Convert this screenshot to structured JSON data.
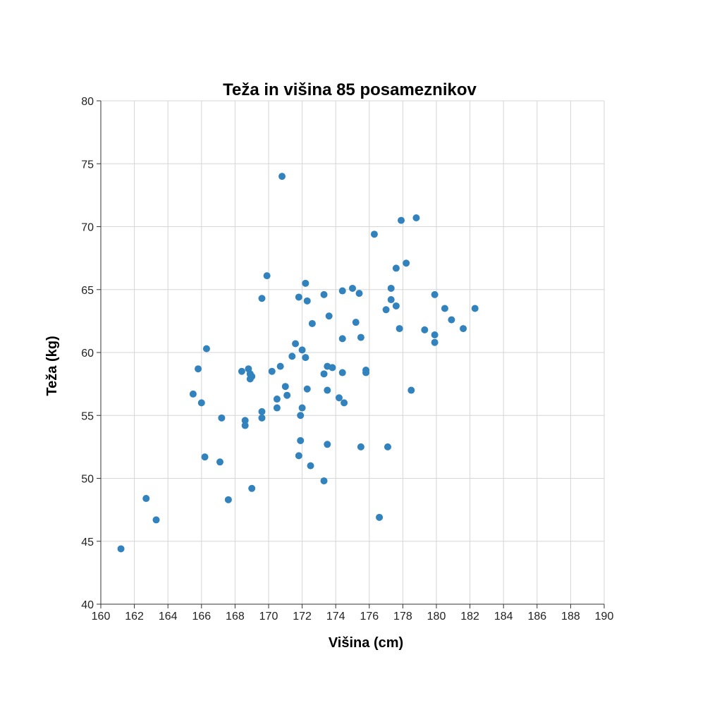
{
  "chart_data": {
    "type": "scatter",
    "title": "Teža in višina 85 posameznikov",
    "xlabel": "Višina (cm)",
    "ylabel": "Teža (kg)",
    "xlim": [
      160,
      190
    ],
    "ylim": [
      40,
      80
    ],
    "x_ticks": [
      160,
      162,
      164,
      166,
      168,
      170,
      172,
      174,
      176,
      178,
      180,
      182,
      184,
      186,
      188,
      190
    ],
    "y_ticks": [
      40,
      45,
      50,
      55,
      60,
      65,
      70,
      75,
      80
    ],
    "grid": true,
    "point_color": "#3182bd",
    "points": [
      [
        161.2,
        44.4
      ],
      [
        162.7,
        48.4
      ],
      [
        163.3,
        46.7
      ],
      [
        165.5,
        56.7
      ],
      [
        165.8,
        58.7
      ],
      [
        166.0,
        56.0
      ],
      [
        166.2,
        51.7
      ],
      [
        166.3,
        60.3
      ],
      [
        167.1,
        51.3
      ],
      [
        167.2,
        54.8
      ],
      [
        167.6,
        48.3
      ],
      [
        168.4,
        58.5
      ],
      [
        168.6,
        54.6
      ],
      [
        168.6,
        54.2
      ],
      [
        168.8,
        58.7
      ],
      [
        168.9,
        58.3
      ],
      [
        168.9,
        57.9
      ],
      [
        169.0,
        58.1
      ],
      [
        169.0,
        49.2
      ],
      [
        169.6,
        64.3
      ],
      [
        169.6,
        55.3
      ],
      [
        169.6,
        54.8
      ],
      [
        169.9,
        66.1
      ],
      [
        170.2,
        58.5
      ],
      [
        170.5,
        56.3
      ],
      [
        170.5,
        55.6
      ],
      [
        170.7,
        58.9
      ],
      [
        170.8,
        74.0
      ],
      [
        171.0,
        57.3
      ],
      [
        171.1,
        56.6
      ],
      [
        171.4,
        59.7
      ],
      [
        171.6,
        60.7
      ],
      [
        171.8,
        64.4
      ],
      [
        171.8,
        51.8
      ],
      [
        171.9,
        55.0
      ],
      [
        171.9,
        53.0
      ],
      [
        172.0,
        60.2
      ],
      [
        172.0,
        55.6
      ],
      [
        172.2,
        65.5
      ],
      [
        172.2,
        59.6
      ],
      [
        172.3,
        64.1
      ],
      [
        172.3,
        57.1
      ],
      [
        172.5,
        51.0
      ],
      [
        172.6,
        62.3
      ],
      [
        173.3,
        64.6
      ],
      [
        173.3,
        58.3
      ],
      [
        173.3,
        49.8
      ],
      [
        173.5,
        58.9
      ],
      [
        173.5,
        57.0
      ],
      [
        173.5,
        52.7
      ],
      [
        173.6,
        62.9
      ],
      [
        173.8,
        58.8
      ],
      [
        174.2,
        56.4
      ],
      [
        174.4,
        64.9
      ],
      [
        174.4,
        61.1
      ],
      [
        174.4,
        58.4
      ],
      [
        174.5,
        56.0
      ],
      [
        175.0,
        65.1
      ],
      [
        175.2,
        62.4
      ],
      [
        175.4,
        64.7
      ],
      [
        175.5,
        61.2
      ],
      [
        175.5,
        52.5
      ],
      [
        175.8,
        58.6
      ],
      [
        175.8,
        58.4
      ],
      [
        176.3,
        69.4
      ],
      [
        176.6,
        46.9
      ],
      [
        177.0,
        63.4
      ],
      [
        177.1,
        52.5
      ],
      [
        177.3,
        65.1
      ],
      [
        177.3,
        64.2
      ],
      [
        177.6,
        66.7
      ],
      [
        177.6,
        63.7
      ],
      [
        177.8,
        61.9
      ],
      [
        177.9,
        70.5
      ],
      [
        178.2,
        67.1
      ],
      [
        178.5,
        57.0
      ],
      [
        178.8,
        70.7
      ],
      [
        179.3,
        61.8
      ],
      [
        179.9,
        64.6
      ],
      [
        179.9,
        61.4
      ],
      [
        179.9,
        60.8
      ],
      [
        180.5,
        63.5
      ],
      [
        180.9,
        62.6
      ],
      [
        181.6,
        61.9
      ],
      [
        182.3,
        63.5
      ]
    ]
  }
}
